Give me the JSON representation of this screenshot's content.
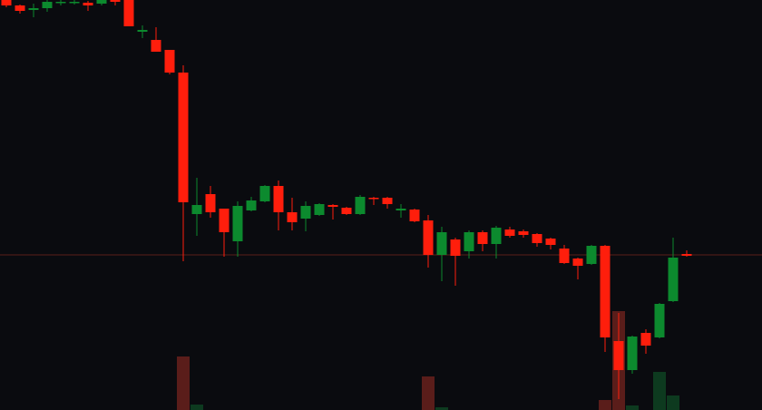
{
  "chart_data": {
    "type": "candlestick",
    "ylim": [
      0,
      452
    ],
    "volume_lim": [
      0,
      452
    ],
    "up_color": "#0c8a2e",
    "down_color": "#ff1e0c",
    "volume_up_color": "#0d3a1f",
    "volume_down_color": "#5a1d1a",
    "price_line": 171,
    "price_line_color": "#5a1f1a",
    "open": [
      452,
      446,
      441,
      443,
      449,
      449,
      449,
      448,
      452,
      452,
      417,
      408,
      397,
      372,
      216,
      238,
      222,
      186,
      220,
      230,
      247,
      218,
      211,
      215,
      226,
      223,
      216,
      234,
      234,
      220,
      221,
      209,
      171,
      188,
      175,
      196,
      183,
      199,
      197,
      194,
      189,
      178,
      167,
      161,
      181,
      76,
      44,
      85,
      80,
      120,
      172
    ],
    "high": [
      452,
      447,
      448,
      452,
      452,
      452,
      451,
      452,
      452,
      452,
      424,
      422,
      397,
      380,
      256,
      247,
      222,
      230,
      235,
      248,
      253,
      234,
      230,
      228,
      227,
      224,
      237,
      235,
      235,
      227,
      222,
      215,
      202,
      190,
      198,
      198,
      203,
      202,
      199,
      195,
      190,
      182,
      168,
      182,
      182,
      107,
      82,
      89,
      118,
      190,
      176
    ],
    "low": [
      444,
      437,
      433,
      439,
      446,
      447,
      440,
      446,
      446,
      423,
      410,
      395,
      370,
      164,
      192,
      212,
      169,
      169,
      219,
      229,
      198,
      198,
      197,
      214,
      210,
      215,
      215,
      226,
      222,
      212,
      207,
      157,
      142,
      137,
      167,
      175,
      167,
      190,
      190,
      180,
      177,
      161,
      144,
      160,
      64,
      12,
      40,
      62,
      79,
      119,
      169
    ],
    "close": [
      446,
      440,
      443,
      450,
      450,
      450,
      446,
      452,
      450,
      423,
      419,
      395,
      372,
      229,
      226,
      218,
      196,
      225,
      231,
      247,
      218,
      207,
      225,
      227,
      224,
      216,
      235,
      233,
      227,
      222,
      208,
      171,
      196,
      170,
      196,
      183,
      201,
      192,
      193,
      184,
      182,
      162,
      159,
      181,
      80,
      44,
      81,
      71,
      117,
      168,
      170
    ],
    "volume": [
      null,
      null,
      null,
      null,
      null,
      null,
      null,
      null,
      null,
      null,
      null,
      null,
      null,
      59,
      6,
      null,
      null,
      null,
      null,
      null,
      null,
      null,
      null,
      null,
      null,
      null,
      null,
      null,
      null,
      null,
      null,
      37,
      3,
      null,
      null,
      null,
      null,
      null,
      null,
      null,
      null,
      null,
      null,
      null,
      11,
      109,
      5,
      null,
      42,
      16,
      null
    ]
  }
}
